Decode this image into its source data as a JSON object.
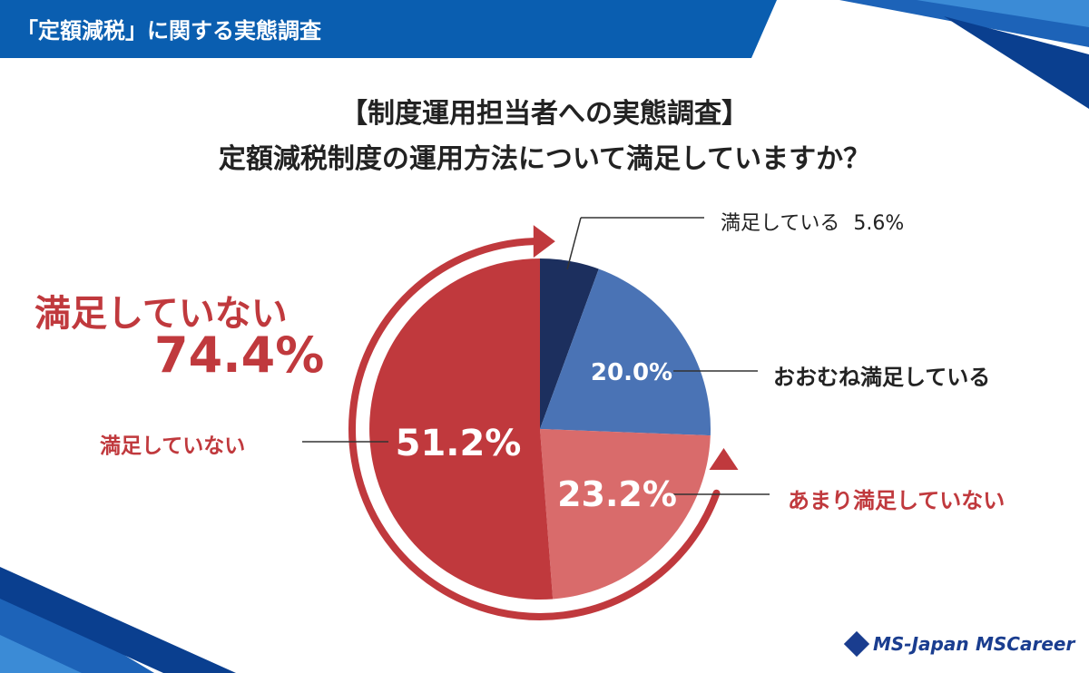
{
  "header": {
    "label": "「定額減税」に関する実態調査"
  },
  "title": {
    "line1": "【制度運用担当者への実態調査】",
    "line2": "定額減税制度の運用方法について満足していますか？"
  },
  "summary": {
    "label": "満足していない",
    "value": "74.4%"
  },
  "colors": {
    "header_blue": "#0a5eb0",
    "satisfied": "#1c2f5e",
    "mostly_satisfied": "#4a73b5",
    "not_very": "#d96b6b",
    "not_satisfied": "#c0393d",
    "accent_red": "#c0393d"
  },
  "logos": {
    "ms_japan": "MS-Japan",
    "ms_career": "MSCareer"
  },
  "chart_data": {
    "type": "pie",
    "title": "定額減税制度の運用方法について満足していますか？",
    "slices": [
      {
        "label": "満足している",
        "value": 5.6,
        "value_text": "5.6%",
        "color": "#1c2f5e"
      },
      {
        "label": "おおむね満足している",
        "value": 20.0,
        "value_text": "20.0%",
        "color": "#4a73b5"
      },
      {
        "label": "あまり満足していない",
        "value": 23.2,
        "value_text": "23.2%",
        "color": "#d96b6b"
      },
      {
        "label": "満足していない",
        "value": 51.2,
        "value_text": "51.2%",
        "color": "#c0393d"
      }
    ],
    "start_angle": "12 o'clock",
    "direction": "clockwise"
  }
}
